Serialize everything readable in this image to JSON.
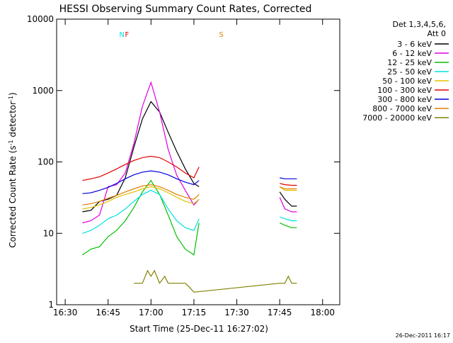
{
  "chart_data": {
    "type": "line",
    "title": "HESSI Observing Summary Count Rates, Corrected",
    "xlabel": "Start Time (25-Dec-11 16:27:02)",
    "ylabel_main": "Corrected Count Rate (s",
    "ylabel_sup1": "-1",
    "ylabel_mid": " detector",
    "ylabel_sup2": "-1",
    "ylabel_end": ")",
    "yscale": "log",
    "xlim": [
      16.45,
      18.1
    ],
    "ylim": [
      1,
      10000
    ],
    "x_ticks": [
      {
        "v": 16.5,
        "label": "16:30"
      },
      {
        "v": 16.75,
        "label": "16:45"
      },
      {
        "v": 17.0,
        "label": "17:00"
      },
      {
        "v": 17.25,
        "label": "17:15"
      },
      {
        "v": 17.5,
        "label": "17:30"
      },
      {
        "v": 17.75,
        "label": "17:45"
      },
      {
        "v": 18.0,
        "label": "18:00"
      }
    ],
    "y_ticks": [
      {
        "v": 1,
        "label": "1"
      },
      {
        "v": 10,
        "label": "10"
      },
      {
        "v": 100,
        "label": "100"
      },
      {
        "v": 1000,
        "label": "1000"
      },
      {
        "v": 10000,
        "label": "10000"
      }
    ],
    "legend_title_1": "Det 1,3,4,5,6,",
    "legend_title_2": "Att 0",
    "footer_timestamp": "26-Dec-2011 16:17",
    "series": [
      {
        "name": "3 - 6 keV",
        "color": "#000000",
        "x": [
          16.6,
          16.65,
          16.7,
          16.75,
          16.8,
          16.85,
          16.9,
          16.95,
          17.0,
          17.05,
          17.1,
          17.15,
          17.2,
          17.25,
          17.28,
          17.35,
          17.75,
          17.78,
          17.82,
          17.85
        ],
        "y": [
          20,
          21,
          28,
          30,
          34,
          60,
          160,
          400,
          700,
          500,
          260,
          140,
          80,
          50,
          45,
          null,
          38,
          30,
          24,
          24
        ]
      },
      {
        "name": "6 - 12 keV",
        "color": "#e000e0",
        "x": [
          16.6,
          16.65,
          16.7,
          16.75,
          16.8,
          16.85,
          16.9,
          16.95,
          17.0,
          17.05,
          17.1,
          17.15,
          17.2,
          17.25,
          17.28,
          17.35,
          17.75,
          17.78,
          17.82,
          17.85
        ],
        "y": [
          14,
          15,
          18,
          45,
          48,
          70,
          180,
          600,
          1300,
          500,
          150,
          65,
          40,
          25,
          30,
          null,
          32,
          22,
          20,
          20
        ]
      },
      {
        "name": "12 - 25 keV",
        "color": "#00c000",
        "x": [
          16.6,
          16.65,
          16.7,
          16.75,
          16.8,
          16.85,
          16.9,
          16.95,
          17.0,
          17.05,
          17.1,
          17.15,
          17.2,
          17.25,
          17.28,
          17.35,
          17.75,
          17.78,
          17.82,
          17.85
        ],
        "y": [
          5,
          6,
          6.5,
          9,
          11,
          15,
          23,
          38,
          55,
          35,
          18,
          9,
          6,
          5,
          14,
          null,
          14,
          13,
          12,
          12
        ]
      },
      {
        "name": "25 - 50 keV",
        "color": "#00e0e0",
        "x": [
          16.6,
          16.65,
          16.7,
          16.75,
          16.8,
          16.85,
          16.9,
          16.95,
          17.0,
          17.05,
          17.1,
          17.15,
          17.2,
          17.25,
          17.28,
          17.35,
          17.75,
          17.78,
          17.82,
          17.85
        ],
        "y": [
          10,
          11,
          13,
          16,
          18,
          22,
          28,
          35,
          40,
          35,
          22,
          15,
          12,
          11,
          16,
          null,
          17,
          16,
          15,
          15
        ]
      },
      {
        "name": "50 - 100 keV",
        "color": "#e0c000",
        "x": [
          16.6,
          16.65,
          16.7,
          16.75,
          16.8,
          16.85,
          16.9,
          16.95,
          17.0,
          17.05,
          17.1,
          17.15,
          17.2,
          17.25,
          17.28,
          17.35,
          17.75,
          17.78,
          17.82,
          17.85
        ],
        "y": [
          22,
          23,
          25,
          28,
          32,
          35,
          38,
          42,
          45,
          42,
          37,
          32,
          28,
          26,
          30,
          null,
          45,
          40,
          40,
          40
        ]
      },
      {
        "name": "100 - 300 keV",
        "color": "#e00000",
        "x": [
          16.6,
          16.65,
          16.7,
          16.75,
          16.8,
          16.85,
          16.9,
          16.95,
          17.0,
          17.05,
          17.1,
          17.15,
          17.2,
          17.25,
          17.28,
          17.35,
          17.75,
          17.78,
          17.82,
          17.85
        ],
        "y": [
          55,
          58,
          62,
          70,
          80,
          92,
          105,
          115,
          120,
          115,
          100,
          85,
          70,
          60,
          85,
          null,
          50,
          48,
          47,
          47
        ]
      },
      {
        "name": "300 - 800 keV",
        "color": "#0000e0",
        "x": [
          16.6,
          16.65,
          16.7,
          16.75,
          16.8,
          16.85,
          16.9,
          16.95,
          17.0,
          17.05,
          17.1,
          17.15,
          17.2,
          17.25,
          17.28,
          17.35,
          17.75,
          17.78,
          17.82,
          17.85
        ],
        "y": [
          36,
          37,
          40,
          44,
          50,
          58,
          66,
          72,
          75,
          72,
          66,
          58,
          52,
          48,
          55,
          null,
          60,
          58,
          58,
          58
        ]
      },
      {
        "name": "800 - 7000 keV",
        "color": "#e08000",
        "x": [
          16.6,
          16.65,
          16.7,
          16.75,
          16.8,
          16.85,
          16.9,
          16.95,
          17.0,
          17.05,
          17.1,
          17.15,
          17.2,
          17.25,
          17.28,
          17.35,
          17.75,
          17.78,
          17.82,
          17.85
        ],
        "y": [
          25,
          26,
          28,
          31,
          34,
          38,
          42,
          46,
          48,
          45,
          40,
          35,
          32,
          30,
          35,
          null,
          45,
          42,
          42,
          42
        ]
      },
      {
        "name": "7000 - 20000 keV",
        "color": "#808000",
        "x": [
          16.9,
          16.95,
          16.98,
          17.0,
          17.02,
          17.05,
          17.08,
          17.1,
          17.12,
          17.15,
          17.18,
          17.2,
          17.22,
          17.25,
          17.75,
          17.78,
          17.8,
          17.82,
          17.85
        ],
        "y": [
          2,
          2,
          3,
          2.5,
          3,
          2,
          2.5,
          2,
          2,
          2,
          2,
          2,
          1.8,
          1.5,
          2,
          2,
          2.5,
          2,
          2
        ]
      }
    ],
    "flags": [
      {
        "label": "N",
        "color": "#00e0e0",
        "v": 16.83
      },
      {
        "label": "F",
        "color": "#e00000",
        "v": 16.86
      },
      {
        "label": "S",
        "color": "#e08000",
        "v": 17.41
      }
    ],
    "grid": false,
    "legend_position": "right"
  }
}
